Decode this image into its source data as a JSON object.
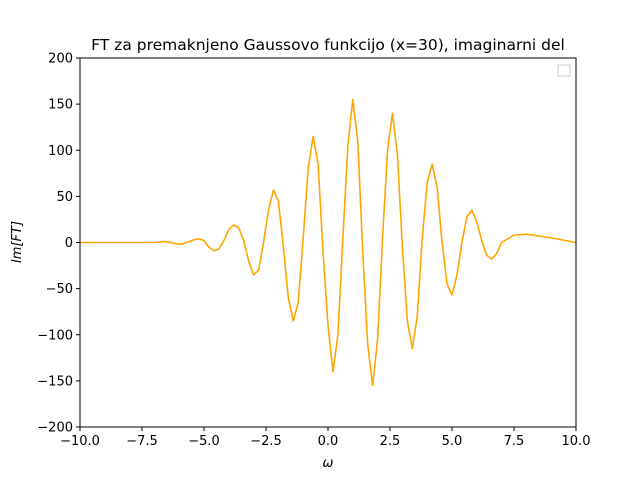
{
  "chart_data": {
    "type": "line",
    "title": "FT za premaknjeno Gaussovo funkcijo (x=30), imaginarni del",
    "xlabel": "ω",
    "ylabel": "Im[FT]",
    "xlim": [
      -10,
      10
    ],
    "ylim": [
      -200,
      200
    ],
    "xticks": [
      -10,
      -7.5,
      -5,
      -2.5,
      0,
      2.5,
      5,
      7.5,
      10
    ],
    "xtick_labels": [
      "−10.0",
      "−7.5",
      "−5.0",
      "−2.5",
      "0.0",
      "2.5",
      "5.0",
      "7.5",
      "10.0"
    ],
    "yticks": [
      -200,
      -150,
      -100,
      -50,
      0,
      50,
      100,
      150,
      200
    ],
    "ytick_labels": [
      "−200",
      "−150",
      "−100",
      "−50",
      "0",
      "50",
      "100",
      "150",
      "200"
    ],
    "grid": false,
    "legend": {
      "position": "top-right",
      "entries": []
    },
    "series": [
      {
        "color": "#ffa500",
        "x": [
          -10,
          -9,
          -8,
          -7.5,
          -7,
          -6.8,
          -6.6,
          -6.4,
          -6.2,
          -6.0,
          -5.8,
          -5.6,
          -5.4,
          -5.2,
          -5.0,
          -4.8,
          -4.6,
          -4.4,
          -4.2,
          -4.0,
          -3.8,
          -3.6,
          -3.4,
          -3.2,
          -3.0,
          -2.8,
          -2.6,
          -2.4,
          -2.2,
          -2.0,
          -1.8,
          -1.6,
          -1.4,
          -1.2,
          -1.0,
          -0.8,
          -0.6,
          -0.4,
          -0.2,
          0.0,
          0.2,
          0.4,
          0.6,
          0.8,
          1.0,
          1.2,
          1.4,
          1.6,
          1.8,
          2.0,
          2.2,
          2.4,
          2.6,
          2.8,
          3.0,
          3.2,
          3.4,
          3.6,
          3.8,
          4.0,
          4.2,
          4.4,
          4.6,
          4.8,
          5.0,
          5.2,
          5.4,
          5.6,
          5.8,
          6.0,
          6.2,
          6.4,
          6.6,
          6.8,
          7.0,
          7.5,
          8,
          9,
          10
        ],
        "y": [
          0,
          0,
          0,
          0,
          0,
          0.5,
          1,
          0.5,
          -1,
          -2,
          -1,
          1,
          3,
          4,
          2,
          -5,
          -9,
          -7,
          2,
          14,
          19,
          16,
          2,
          -20,
          -35,
          -30,
          0,
          35,
          57,
          45,
          -5,
          -60,
          -85,
          -65,
          5,
          80,
          115,
          85,
          -10,
          -90,
          -140,
          -100,
          5,
          105,
          155,
          110,
          -10,
          -110,
          -155,
          -105,
          5,
          100,
          140,
          95,
          -5,
          -85,
          -115,
          -80,
          5,
          65,
          85,
          60,
          0,
          -45,
          -57,
          -35,
          0,
          28,
          35,
          22,
          2,
          -14,
          -18,
          -12,
          0,
          8,
          9,
          5,
          0
        ]
      }
    ]
  }
}
